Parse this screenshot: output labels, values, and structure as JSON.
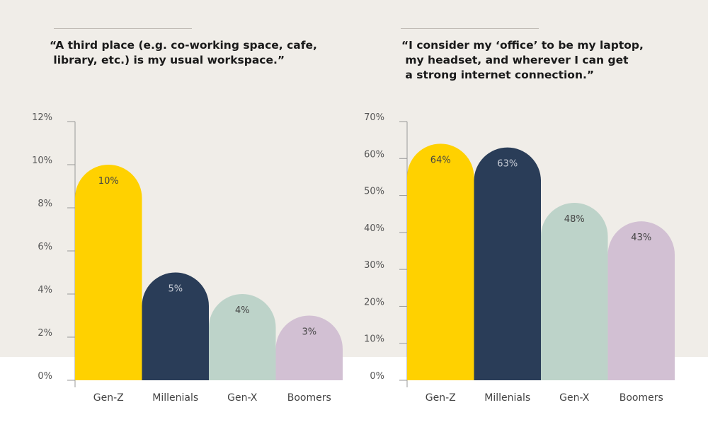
{
  "chart_data": [
    {
      "type": "bar",
      "title": "“A third place (e.g. co-working space, cafe,\n library, etc.) is my usual workspace.”",
      "categories": [
        "Gen-Z",
        "Millenials",
        "Gen-X",
        "Boomers"
      ],
      "values": [
        10,
        5,
        4,
        3
      ],
      "value_labels": [
        "10%",
        "5%",
        "4%",
        "3%"
      ],
      "yticks": [
        "0%",
        "2%",
        "4%",
        "6%",
        "8%",
        "10%",
        "12%"
      ],
      "ylim": [
        0,
        12
      ],
      "grid": false
    },
    {
      "type": "bar",
      "title": "“I consider my ‘office’ to be my laptop,\n my headset, and wherever I can get\n a strong internet connection.”",
      "categories": [
        "Gen-Z",
        "Millenials",
        "Gen-X",
        "Boomers"
      ],
      "values": [
        64,
        63,
        48,
        43
      ],
      "value_labels": [
        "64%",
        "63%",
        "48%",
        "43%"
      ],
      "yticks": [
        "0%",
        "10%",
        "20%",
        "30%",
        "40%",
        "50%",
        "60%",
        "70%"
      ],
      "ylim": [
        0,
        70
      ],
      "grid": false
    }
  ],
  "colors": [
    "#ffd100",
    "#2a3d58",
    "#bdd3c9",
    "#d2c0d3"
  ],
  "label_colors": [
    "#444444",
    "#c8cdd6",
    "#444444",
    "#444444"
  ]
}
